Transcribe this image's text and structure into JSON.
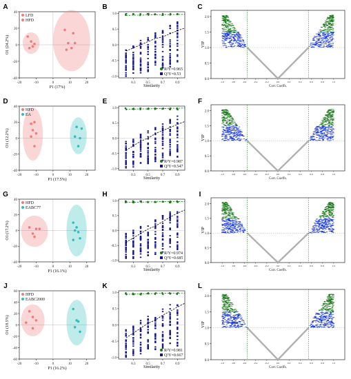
{
  "panels": [
    {
      "row": 0,
      "score": {
        "label": "A",
        "groups": [
          "LFD",
          "HFD"
        ],
        "colors": [
          "#f07b78",
          "#2bbfbd"
        ],
        "xlabel": "P1 (17%)",
        "ylabel": "O1 (24.2%)",
        "xticks": [
          "-20",
          "-10",
          "0",
          "10",
          "20"
        ],
        "yticks": [
          "-40",
          "-20",
          "0",
          "20",
          "40"
        ]
      },
      "perm": {
        "label": "B",
        "xlabel": "Similarity",
        "xticks": [
          "0.3",
          "0.5",
          "0.7",
          "0.9"
        ],
        "yticks": [
          "-1.0",
          "-0.5",
          "0.0",
          "0.5",
          "1.0"
        ],
        "legend": [
          "R²Y=0.965",
          "Q²Y=0.53"
        ]
      },
      "vip": {
        "label": "C",
        "xlabel": "Corr. Coeffs.",
        "ylabel": "VIP",
        "xticks": [
          "-1.0",
          "-0.8",
          "-0.6",
          "-0.4",
          "-0.2",
          "0.0",
          "0.2",
          "0.4",
          "0.6",
          "0.8",
          "1.0"
        ],
        "yticks": [
          "0.0",
          "0.5",
          "1.0",
          "1.5",
          "2.0"
        ]
      }
    },
    {
      "row": 1,
      "score": {
        "label": "D",
        "groups": [
          "HFD",
          "EA"
        ],
        "colors": [
          "#f07b78",
          "#2bbfbd"
        ],
        "xlabel": "P1 (17.5%)",
        "ylabel": "O1 (12.2%)",
        "xticks": [
          "-20",
          "-10",
          "0",
          "10",
          "20"
        ],
        "yticks": [
          "-40",
          "-20",
          "0",
          "20",
          "40"
        ]
      },
      "perm": {
        "label": "E",
        "xlabel": "Similarity",
        "xticks": [
          "0.3",
          "0.5",
          "0.7",
          "0.9"
        ],
        "yticks": [
          "-1.0",
          "-0.5",
          "0.0",
          "0.5",
          "1.0"
        ],
        "legend": [
          "R²Y=0.987",
          "Q²Y=0.547"
        ]
      },
      "vip": {
        "label": "F",
        "xlabel": "Corr. Coeffs.",
        "ylabel": "VIP",
        "xticks": [
          "-1.0",
          "-0.8",
          "-0.6",
          "-0.4",
          "-0.2",
          "0.0",
          "0.2",
          "0.4",
          "0.6",
          "0.8",
          "1.0"
        ],
        "yticks": [
          "0.0",
          "0.5",
          "1.0",
          "1.5",
          "2.0"
        ]
      }
    },
    {
      "row": 2,
      "score": {
        "label": "G",
        "groups": [
          "HFD",
          "EABC77"
        ],
        "colors": [
          "#f07b78",
          "#2bbfbd"
        ],
        "xlabel": "P1 (16.1%)",
        "ylabel": "O1 (17.2%)",
        "xticks": [
          "-20",
          "-10",
          "0",
          "10",
          "20"
        ],
        "yticks": [
          "-40",
          "-20",
          "0",
          "20",
          "40"
        ]
      },
      "perm": {
        "label": "H",
        "xlabel": "Similarity",
        "xticks": [
          "0.3",
          "0.5",
          "0.7",
          "0.9"
        ],
        "yticks": [
          "-1.0",
          "-0.5",
          "0.0",
          "0.5",
          "1.0"
        ],
        "legend": [
          "R²Y=0.974",
          "Q²Y=0.685"
        ]
      },
      "vip": {
        "label": "I",
        "xlabel": "Corr. Coeffs.",
        "ylabel": "VIP",
        "xticks": [
          "-1.0",
          "-0.8",
          "-0.6",
          "-0.4",
          "-0.2",
          "0.0",
          "0.2",
          "0.4",
          "0.6",
          "0.8",
          "1.0"
        ],
        "yticks": [
          "0.0",
          "0.5",
          "1.0",
          "1.5",
          "2.0"
        ]
      }
    },
    {
      "row": 3,
      "score": {
        "label": "J",
        "groups": [
          "HFD",
          "EABC2000"
        ],
        "colors": [
          "#f07b78",
          "#2bbfbd"
        ],
        "xlabel": "P1 (16.2%)",
        "ylabel": "O1 (18.5%)",
        "xticks": [
          "-20",
          "-10",
          "0",
          "10",
          "20"
        ],
        "yticks": [
          "-60",
          "-40",
          "-20",
          "0",
          "20",
          "40",
          "60"
        ]
      },
      "perm": {
        "label": "K",
        "xlabel": "Similarity",
        "xticks": [
          "0.3",
          "0.5",
          "0.7",
          "0.9"
        ],
        "yticks": [
          "-1.0",
          "-0.5",
          "0.0",
          "0.5",
          "1.0"
        ],
        "legend": [
          "R²Y=0.981",
          "Q²Y=0.667"
        ]
      },
      "vip": {
        "label": "L",
        "xlabel": "Corr. Coeffs.",
        "ylabel": "VIP",
        "xticks": [
          "-1.0",
          "-0.8",
          "-0.6",
          "-0.4",
          "-0.2",
          "0.0",
          "0.2",
          "0.4",
          "0.6",
          "0.8",
          "1.0"
        ],
        "yticks": [
          "0.0",
          "0.5",
          "1.0",
          "1.5",
          "2.0"
        ]
      }
    }
  ],
  "chart_data": [
    {
      "type": "scatter",
      "panel": "A",
      "xlim": [
        -20,
        25
      ],
      "ylim": [
        -40,
        40
      ],
      "series": [
        {
          "name": "LFD",
          "x": [
            7,
            12,
            9,
            13,
            8,
            11
          ],
          "y": [
            18,
            14,
            2,
            2,
            -6,
            -4
          ],
          "ellipse": {
            "cx": 11,
            "cy": 5,
            "rx": 11,
            "ry": 37
          }
        },
        {
          "name": "HFD",
          "x": [
            -15,
            -13,
            -12,
            -14,
            -11
          ],
          "y": [
            10,
            4,
            -2,
            -4,
            1
          ],
          "ellipse": {
            "cx": -13,
            "cy": 2,
            "rx": 5,
            "ry": 13
          }
        }
      ]
    },
    {
      "type": "scatter",
      "panel": "B",
      "xlim": [
        0.1,
        1.0
      ],
      "ylim": [
        -1.05,
        1.05
      ],
      "series": [
        {
          "name": "R²Y",
          "x": [
            0.2,
            0.3,
            0.4,
            0.5,
            0.6,
            0.7,
            0.8,
            0.9,
            1.0
          ],
          "y": [
            0.93,
            0.94,
            0.94,
            0.95,
            0.95,
            0.96,
            0.96,
            0.96,
            0.965
          ]
        },
        {
          "name": "Q²Y",
          "x": [
            0.2,
            0.3,
            0.4,
            0.5,
            0.6,
            0.7,
            0.8,
            0.9,
            1.0
          ],
          "y": [
            -0.2,
            -0.1,
            0.0,
            0.1,
            0.2,
            0.25,
            0.35,
            0.45,
            0.53
          ]
        }
      ]
    },
    {
      "type": "scatter",
      "panel": "C",
      "xlim": [
        -1.2,
        1.2
      ],
      "ylim": [
        0,
        2.2
      ],
      "threshold_vip": 1.0,
      "threshold_corr": [
        -0.55,
        0.55
      ]
    },
    {
      "type": "scatter",
      "panel": "D",
      "xlim": [
        -20,
        25
      ],
      "ylim": [
        -40,
        40
      ],
      "series": [
        {
          "name": "HFD",
          "x": [
            -13,
            -11,
            -12,
            -10,
            -13,
            -11
          ],
          "y": [
            18,
            20,
            10,
            6,
            2,
            -10
          ],
          "ellipse": {
            "cx": -12,
            "cy": 5,
            "rx": 6,
            "ry": 33
          }
        },
        {
          "name": "EA",
          "x": [
            14,
            17,
            13,
            16,
            15
          ],
          "y": [
            14,
            12,
            2,
            0,
            -10
          ],
          "ellipse": {
            "cx": 15,
            "cy": 3,
            "rx": 5,
            "ry": 23
          }
        }
      ]
    },
    {
      "type": "scatter",
      "panel": "E",
      "xlim": [
        0.1,
        1.0
      ],
      "ylim": [
        -1.05,
        1.05
      ],
      "series": [
        {
          "name": "R²Y",
          "x": [
            0.2,
            0.3,
            0.4,
            0.5,
            0.6,
            0.7,
            0.8,
            0.9,
            1.0
          ],
          "y": [
            0.94,
            0.95,
            0.96,
            0.96,
            0.97,
            0.97,
            0.98,
            0.98,
            0.987
          ]
        },
        {
          "name": "Q²Y",
          "x": [
            0.2,
            0.3,
            0.4,
            0.5,
            0.6,
            0.7,
            0.8,
            0.9,
            1.0
          ],
          "y": [
            -0.4,
            -0.25,
            -0.1,
            0.0,
            0.15,
            0.25,
            0.35,
            0.45,
            0.547
          ]
        }
      ]
    },
    {
      "type": "scatter",
      "panel": "F",
      "xlim": [
        -1.2,
        1.2
      ],
      "ylim": [
        0,
        2.2
      ],
      "threshold_vip": 1.0,
      "threshold_corr": [
        -0.55,
        0.55
      ]
    },
    {
      "type": "scatter",
      "panel": "G",
      "xlim": [
        -20,
        25
      ],
      "ylim": [
        -40,
        40
      ],
      "series": [
        {
          "name": "HFD",
          "x": [
            -14,
            -10,
            -8,
            -12,
            -11
          ],
          "y": [
            4,
            2,
            2,
            -4,
            -8
          ],
          "ellipse": {
            "cx": -11,
            "cy": -1,
            "rx": 8,
            "ry": 20
          }
        },
        {
          "name": "EABC77",
          "x": [
            12,
            14,
            13,
            15,
            12,
            16
          ],
          "y": [
            10,
            4,
            0,
            -2,
            -12,
            -10
          ],
          "ellipse": {
            "cx": 14,
            "cy": 0,
            "rx": 6,
            "ry": 33
          }
        }
      ]
    },
    {
      "type": "scatter",
      "panel": "H",
      "xlim": [
        0.1,
        1.0
      ],
      "ylim": [
        -1.05,
        1.05
      ],
      "series": [
        {
          "name": "R²Y",
          "x": [
            0.2,
            0.3,
            0.4,
            0.5,
            0.6,
            0.7,
            0.8,
            0.9,
            1.0
          ],
          "y": [
            0.94,
            0.95,
            0.95,
            0.96,
            0.96,
            0.97,
            0.97,
            0.97,
            0.974
          ]
        },
        {
          "name": "Q²Y",
          "x": [
            0.2,
            0.3,
            0.4,
            0.5,
            0.6,
            0.7,
            0.8,
            0.9,
            1.0
          ],
          "y": [
            -0.4,
            -0.25,
            -0.1,
            0.05,
            0.15,
            0.3,
            0.45,
            0.58,
            0.685
          ]
        }
      ]
    },
    {
      "type": "scatter",
      "panel": "I",
      "xlim": [
        -1.2,
        1.2
      ],
      "ylim": [
        0,
        2.2
      ],
      "threshold_vip": 1.0,
      "threshold_corr": [
        -0.55,
        0.55
      ]
    },
    {
      "type": "scatter",
      "panel": "J",
      "xlim": [
        -20,
        25
      ],
      "ylim": [
        -60,
        60
      ],
      "series": [
        {
          "name": "HFD",
          "x": [
            -14,
            -12,
            -10,
            -16,
            -12
          ],
          "y": [
            24,
            14,
            8,
            4,
            -6
          ],
          "ellipse": {
            "cx": -12,
            "cy": 8,
            "rx": 7,
            "ry": 28
          }
        },
        {
          "name": "EABC2000",
          "x": [
            12,
            14,
            15,
            13,
            16
          ],
          "y": [
            28,
            8,
            6,
            -4,
            -12
          ],
          "ellipse": {
            "cx": 14,
            "cy": 4,
            "rx": 6,
            "ry": 40
          }
        }
      ]
    },
    {
      "type": "scatter",
      "panel": "K",
      "xlim": [
        0.1,
        1.0
      ],
      "ylim": [
        -1.05,
        1.05
      ],
      "series": [
        {
          "name": "R²Y",
          "x": [
            0.2,
            0.3,
            0.4,
            0.5,
            0.6,
            0.7,
            0.8,
            0.9,
            1.0
          ],
          "y": [
            0.94,
            0.95,
            0.96,
            0.96,
            0.97,
            0.97,
            0.98,
            0.98,
            0.981
          ]
        },
        {
          "name": "Q²Y",
          "x": [
            0.2,
            0.3,
            0.4,
            0.5,
            0.6,
            0.7,
            0.8,
            0.9,
            1.0
          ],
          "y": [
            -0.4,
            -0.25,
            -0.1,
            0.05,
            0.15,
            0.3,
            0.42,
            0.55,
            0.667
          ]
        }
      ]
    },
    {
      "type": "scatter",
      "panel": "L",
      "xlim": [
        -1.2,
        1.2
      ],
      "ylim": [
        0,
        2.2
      ],
      "threshold_vip": 1.0,
      "threshold_corr": [
        -0.55,
        0.55
      ]
    }
  ],
  "colors": {
    "green": "#1a7a1a",
    "blue": "#1030e0",
    "navy": "#14148c",
    "grey": "#b0b0b0",
    "pink": "#f07b78",
    "teal": "#2bbfbd"
  }
}
